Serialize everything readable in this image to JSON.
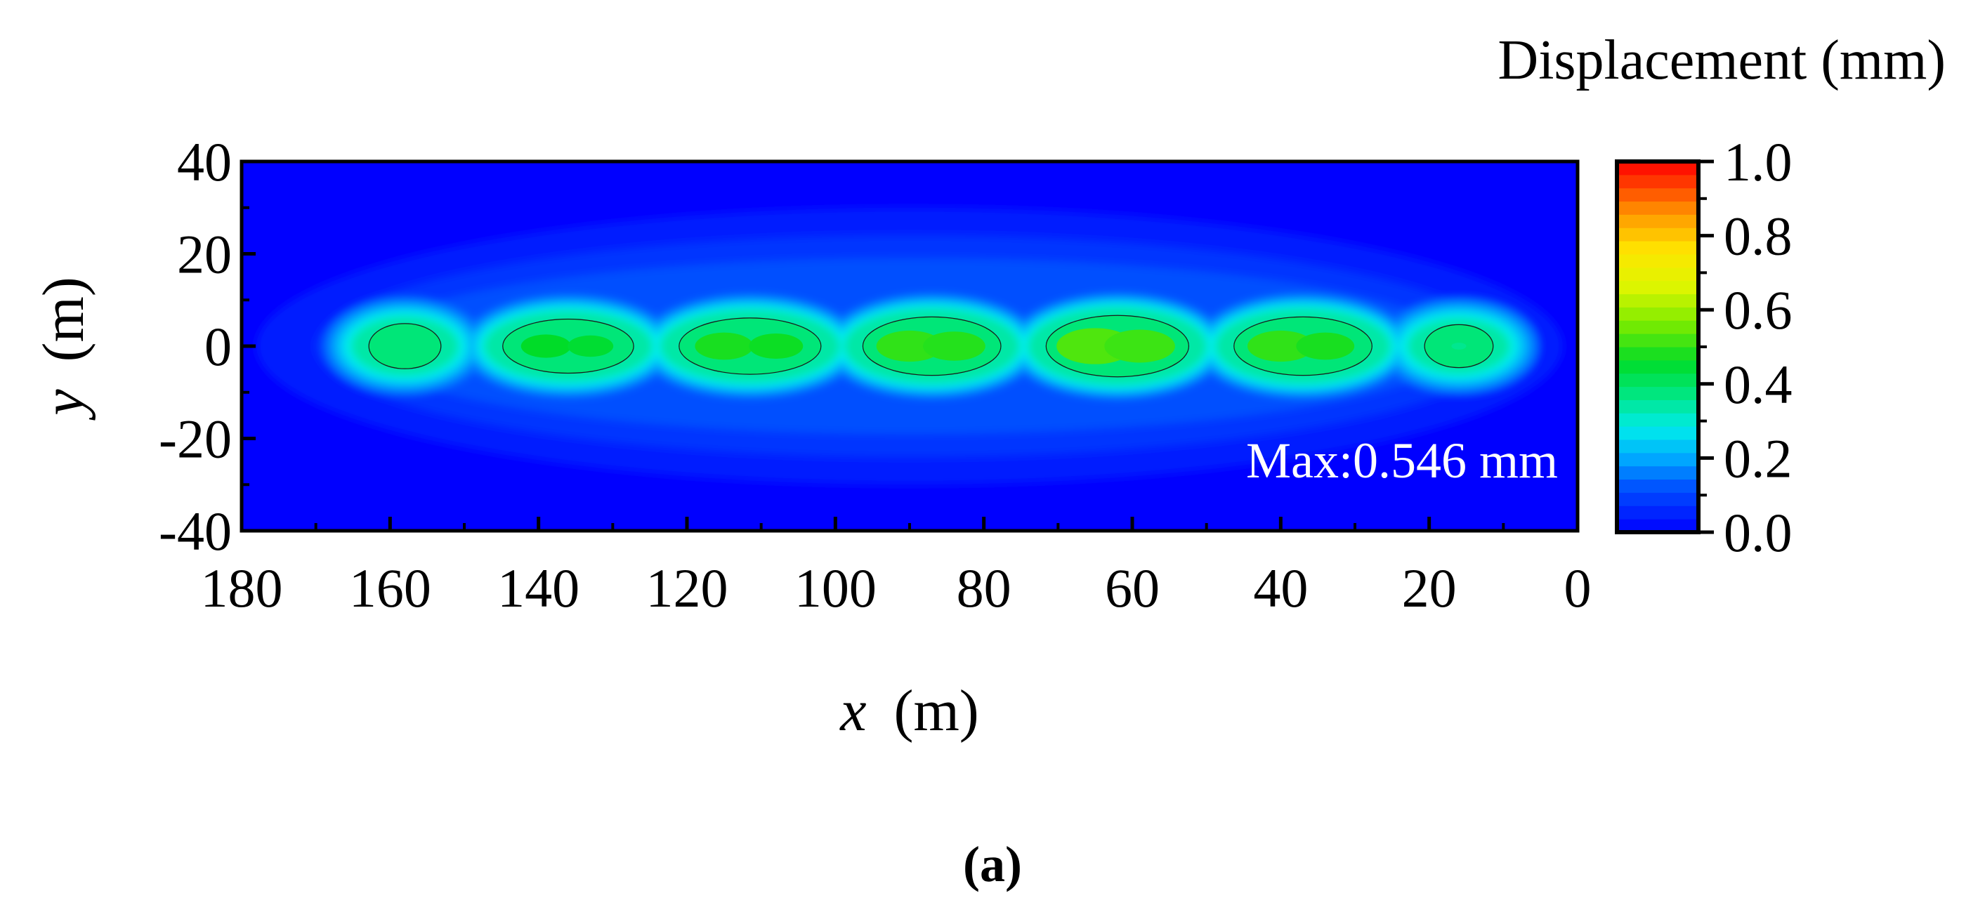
{
  "chart_data": {
    "type": "heatmap",
    "title": "",
    "xlabel": "x",
    "xlabel_unit": "(m)",
    "ylabel": "y",
    "ylabel_unit": "(m)",
    "xlim": [
      180,
      0
    ],
    "ylim": [
      -40,
      40
    ],
    "x_ticks": [
      180,
      160,
      140,
      120,
      100,
      80,
      60,
      40,
      20,
      0
    ],
    "y_ticks": [
      40,
      20,
      0,
      -20,
      -40
    ],
    "colorbar": {
      "title": "Displacement (mm)",
      "range": [
        0,
        1.0
      ],
      "ticks": [
        "0.0",
        "0.2",
        "0.4",
        "0.6",
        "0.8",
        "1.0"
      ],
      "colors": [
        "#0000ff",
        "#00aaff",
        "#00ffff",
        "#00ff66",
        "#66ff00",
        "#ffff00",
        "#ffaa00",
        "#ff3300",
        "#ff0000"
      ]
    },
    "annotation": "Max:0.546 mm",
    "background_value": 0.0,
    "displacement_peaks": [
      {
        "x": 158,
        "y": 0,
        "value": 0.4
      },
      {
        "x": 139,
        "y": 0,
        "value": 0.48
      },
      {
        "x": 133,
        "y": 0,
        "value": 0.47
      },
      {
        "x": 115,
        "y": 0,
        "value": 0.5
      },
      {
        "x": 108,
        "y": 0,
        "value": 0.49
      },
      {
        "x": 90,
        "y": 0,
        "value": 0.52
      },
      {
        "x": 84,
        "y": 0,
        "value": 0.51
      },
      {
        "x": 65,
        "y": 0,
        "value": 0.546
      },
      {
        "x": 59,
        "y": 0,
        "value": 0.53
      },
      {
        "x": 40,
        "y": 0,
        "value": 0.52
      },
      {
        "x": 34,
        "y": 0,
        "value": 0.5
      },
      {
        "x": 16,
        "y": 0,
        "value": 0.38
      }
    ]
  },
  "panel_label": "(a)"
}
